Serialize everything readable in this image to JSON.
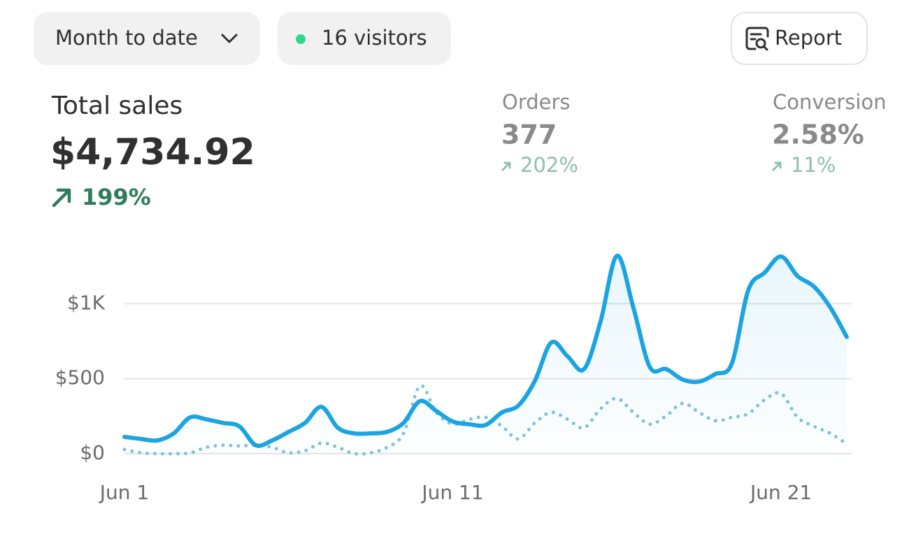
{
  "header": {
    "period": "Month to date",
    "visitors": "16 visitors",
    "report": "Report"
  },
  "metrics": [
    {
      "label": "Total sales",
      "value": "$4,734.92",
      "change": "199%"
    },
    {
      "label": "Orders",
      "value": "377",
      "change": "202%"
    },
    {
      "label": "Conversion",
      "value": "2.58%",
      "change": "11%"
    }
  ],
  "chart_data": {
    "type": "line",
    "categories": [
      "Jun 1",
      null,
      null,
      null,
      null,
      null,
      null,
      null,
      null,
      null,
      null,
      null,
      null,
      null,
      null,
      null,
      null,
      null,
      null,
      null,
      "Jun 11",
      null,
      null,
      null,
      null,
      null,
      null,
      null,
      null,
      null,
      null,
      null,
      null,
      null,
      null,
      null,
      null,
      null,
      null,
      null,
      "Jun 21",
      null,
      null,
      null,
      null
    ],
    "series": [
      {
        "color": "#1ba4e2",
        "style": "solid",
        "fill": true,
        "values": [
          112,
          98,
          88,
          135,
          242,
          228,
          205,
          182,
          56,
          88,
          145,
          205,
          312,
          172,
          135,
          135,
          145,
          205,
          350,
          284,
          214,
          196,
          191,
          275,
          321,
          485,
          741,
          648,
          564,
          880,
          1319,
          974,
          578,
          564,
          494,
          480,
          531,
          601,
          1090,
          1207,
          1314,
          1184,
          1114,
          974,
          778
        ]
      },
      {
        "color": "#7ec3dd",
        "style": "dotted",
        "fill": false,
        "values": [
          28,
          5,
          0,
          0,
          5,
          42,
          56,
          51,
          56,
          42,
          5,
          19,
          70,
          42,
          0,
          5,
          42,
          135,
          452,
          275,
          196,
          228,
          242,
          182,
          98,
          205,
          275,
          228,
          172,
          298,
          368,
          275,
          196,
          252,
          335,
          275,
          219,
          242,
          266,
          359,
          401,
          242,
          182,
          135,
          65
        ]
      }
    ],
    "ylim": [
      0,
      1400
    ],
    "yticks": [
      {
        "value": 0,
        "label": "$0"
      },
      {
        "value": 500,
        "label": "$500"
      },
      {
        "value": 1000,
        "label": "$1K"
      }
    ],
    "grid": true
  }
}
